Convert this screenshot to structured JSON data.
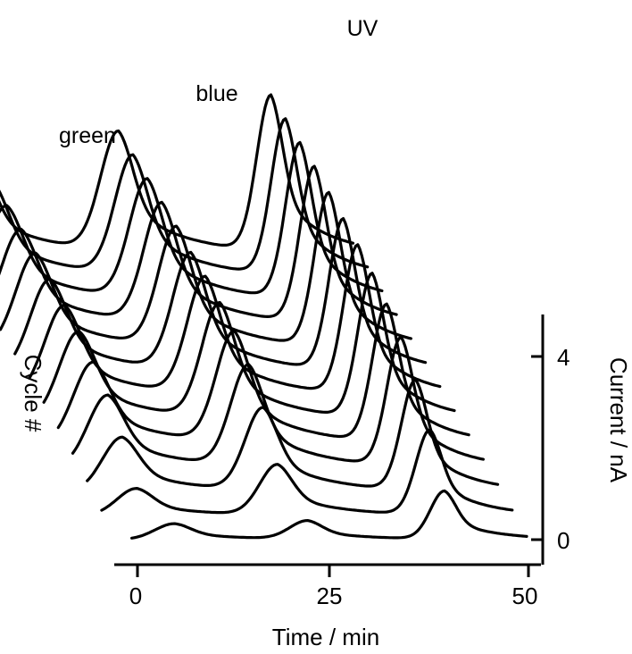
{
  "chart_data": {
    "type": "line",
    "style": "waterfall",
    "title": "",
    "xlabel": "Time / min",
    "ylabel_left": "Cycle #",
    "ylabel_right": "Current / nA",
    "x_ticks": [
      0,
      25,
      50
    ],
    "y_ticks": [
      0,
      4
    ],
    "xlim": [
      -2,
      50
    ],
    "ylim": [
      -0.3,
      4.6
    ],
    "annotations": [
      "green",
      "blue",
      "UV"
    ],
    "cycle_offset": {
      "dx_min": -1.85,
      "dy_nA": 0.52
    },
    "peak_widths_min": {
      "green": 4.2,
      "blue": 3.8,
      "UV": 3.0
    },
    "series": [
      {
        "peaks": {
          "green": 0.35,
          "blue": 0.4,
          "UV": 1.05
        }
      },
      {
        "peaks": {
          "green": 0.6,
          "blue": 1.1,
          "UV": 1.85
        }
      },
      {
        "peaks": {
          "green": 1.2,
          "blue": 1.8,
          "UV": 2.4
        }
      },
      {
        "peaks": {
          "green": 1.6,
          "blue": 2.2,
          "UV": 2.8
        }
      },
      {
        "peaks": {
          "green": 1.8,
          "blue": 2.4,
          "UV": 3.0
        }
      },
      {
        "peaks": {
          "green": 1.95,
          "blue": 2.5,
          "UV": 3.15
        }
      },
      {
        "peaks": {
          "green": 2.0,
          "blue": 2.55,
          "UV": 3.25
        }
      },
      {
        "peaks": {
          "green": 2.05,
          "blue": 2.55,
          "UV": 3.3
        }
      },
      {
        "peaks": {
          "green": 2.1,
          "blue": 2.6,
          "UV": 3.35
        }
      },
      {
        "peaks": {
          "green": 2.1,
          "blue": 2.6,
          "UV": 3.4
        }
      },
      {
        "peaks": {
          "green": 2.1,
          "blue": 2.6,
          "UV": 3.4
        }
      },
      {
        "peaks": {
          "green": 2.1,
          "blue": 2.6,
          "UV": 3.4
        }
      },
      {
        "peaks": {
          "green": 2.1,
          "blue": 2.6,
          "UV": 3.4
        }
      }
    ],
    "grid": false,
    "legend": "none"
  }
}
